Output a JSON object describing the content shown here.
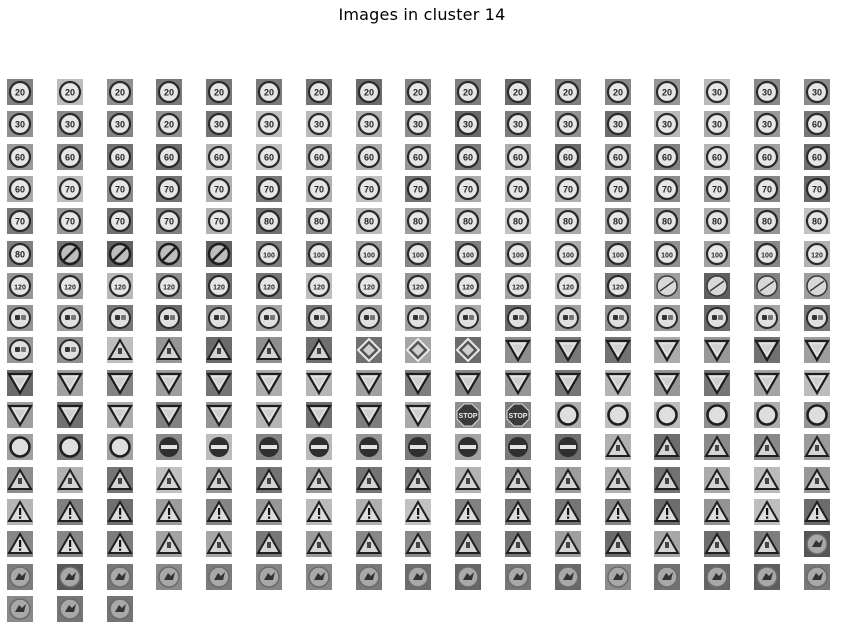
{
  "title": "Images in cluster 14",
  "rows": [
    [
      "s20",
      "s20",
      "s20",
      "s20",
      "s20",
      "s20",
      "s20",
      "s20",
      "s20",
      "s20",
      "s20",
      "s20",
      "s20",
      "s20",
      "s30",
      "s30",
      "s30"
    ],
    [
      "s30",
      "s30",
      "s30",
      "s20",
      "s30",
      "s30",
      "s30",
      "s30",
      "s30",
      "s30",
      "s30",
      "s30",
      "s30",
      "s30",
      "s30",
      "s30",
      "s60"
    ],
    [
      "s60",
      "s60",
      "s60",
      "s60",
      "s60",
      "s60",
      "s60",
      "s60",
      "s60",
      "s60",
      "s60",
      "s60",
      "s60",
      "s60",
      "s60",
      "s60",
      "s60"
    ],
    [
      "s60",
      "s70",
      "s70",
      "s70",
      "s70",
      "s70",
      "s70",
      "s70",
      "s70",
      "s70",
      "s70",
      "s70",
      "s70",
      "s70",
      "s70",
      "s70",
      "s70"
    ],
    [
      "s70",
      "s70",
      "s70",
      "s70",
      "s70",
      "s80",
      "s80",
      "s80",
      "s80",
      "s80",
      "s80",
      "s80",
      "s80",
      "s80",
      "s80",
      "s80",
      "s80"
    ],
    [
      "s80",
      "noentry",
      "noentry",
      "noentry",
      "noentry",
      "s100",
      "s100",
      "s100",
      "s100",
      "s100",
      "s100",
      "s100",
      "s100",
      "s100",
      "s100",
      "s100",
      "s120"
    ],
    [
      "s120",
      "s120",
      "s120",
      "s120",
      "s120",
      "s120",
      "s120",
      "s120",
      "s120",
      "s120",
      "s120",
      "s120",
      "s120",
      "endlim",
      "endlim",
      "endlim",
      "endlim"
    ],
    [
      "car",
      "car",
      "car",
      "car",
      "car",
      "car",
      "car",
      "car",
      "car",
      "car",
      "car",
      "car",
      "car",
      "car",
      "car",
      "car",
      "car"
    ],
    [
      "car",
      "car",
      "tri",
      "tri",
      "tri",
      "tri",
      "tri",
      "diamond",
      "diamond",
      "diamond",
      "yield",
      "yield",
      "yield",
      "yield",
      "yield",
      "yield",
      "yield"
    ],
    [
      "yield",
      "yield",
      "yield",
      "yield",
      "yield",
      "yield",
      "yield",
      "yield",
      "yield",
      "yield",
      "yield",
      "yield",
      "yield",
      "yield",
      "yield",
      "yield",
      "yield"
    ],
    [
      "yield",
      "yield",
      "yield",
      "yield",
      "yield",
      "yield",
      "yield",
      "yield",
      "yield",
      "stop",
      "stop",
      "ring",
      "ring",
      "ring",
      "ring",
      "ring",
      "ring"
    ],
    [
      "ring",
      "ring",
      "ring",
      "bar",
      "bar",
      "bar",
      "bar",
      "bar",
      "bar",
      "bar",
      "bar",
      "bar",
      "tri",
      "tri",
      "tri",
      "tri",
      "tri"
    ],
    [
      "tri",
      "tri",
      "tri",
      "tri",
      "tri",
      "tri",
      "tri",
      "tri",
      "tri",
      "tri",
      "tri",
      "tri",
      "tri",
      "tri",
      "tri",
      "tri",
      "tri"
    ],
    [
      "warn",
      "warn",
      "warn",
      "warn",
      "warn",
      "warn",
      "warn",
      "warn",
      "warn",
      "warn",
      "warn",
      "warn",
      "warn",
      "warn",
      "warn",
      "warn",
      "warn"
    ],
    [
      "warn",
      "warn",
      "warn",
      "tri",
      "tri",
      "tri",
      "tri",
      "tri",
      "tri",
      "tri",
      "tri",
      "tri",
      "tri",
      "tri",
      "tri",
      "tri",
      "blob"
    ],
    [
      "blob",
      "blob",
      "blob",
      "blob",
      "blob",
      "blob",
      "blob",
      "blob",
      "blob",
      "blob",
      "blob",
      "blob",
      "blob",
      "blob",
      "blob",
      "blob",
      "blob"
    ],
    [
      "blob",
      "blob",
      "blob"
    ]
  ]
}
